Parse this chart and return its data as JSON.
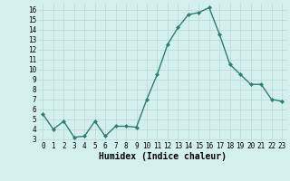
{
  "x": [
    0,
    1,
    2,
    3,
    4,
    5,
    6,
    7,
    8,
    9,
    10,
    11,
    12,
    13,
    14,
    15,
    16,
    17,
    18,
    19,
    20,
    21,
    22,
    23
  ],
  "y": [
    5.5,
    4.0,
    4.8,
    3.2,
    3.3,
    4.8,
    3.3,
    4.3,
    4.3,
    4.2,
    7.0,
    9.5,
    12.5,
    14.2,
    15.5,
    15.7,
    16.2,
    13.5,
    10.5,
    9.5,
    8.5,
    8.5,
    7.0,
    6.8
  ],
  "line_color": "#2e7d6e",
  "marker": "D",
  "marker_size": 2.0,
  "linewidth": 1.0,
  "xlabel": "Humidex (Indice chaleur)",
  "xlabel_fontsize": 7,
  "yticks": [
    3,
    4,
    5,
    6,
    7,
    8,
    9,
    10,
    11,
    12,
    13,
    14,
    15,
    16
  ],
  "xticks": [
    0,
    1,
    2,
    3,
    4,
    5,
    6,
    7,
    8,
    9,
    10,
    11,
    12,
    13,
    14,
    15,
    16,
    17,
    18,
    19,
    20,
    21,
    22,
    23
  ],
  "ylim": [
    2.8,
    16.6
  ],
  "xlim": [
    -0.5,
    23.5
  ],
  "bg_color": "#d4f0ec",
  "grid_color": "#b8d8d4",
  "tick_label_fontsize": 5.5
}
